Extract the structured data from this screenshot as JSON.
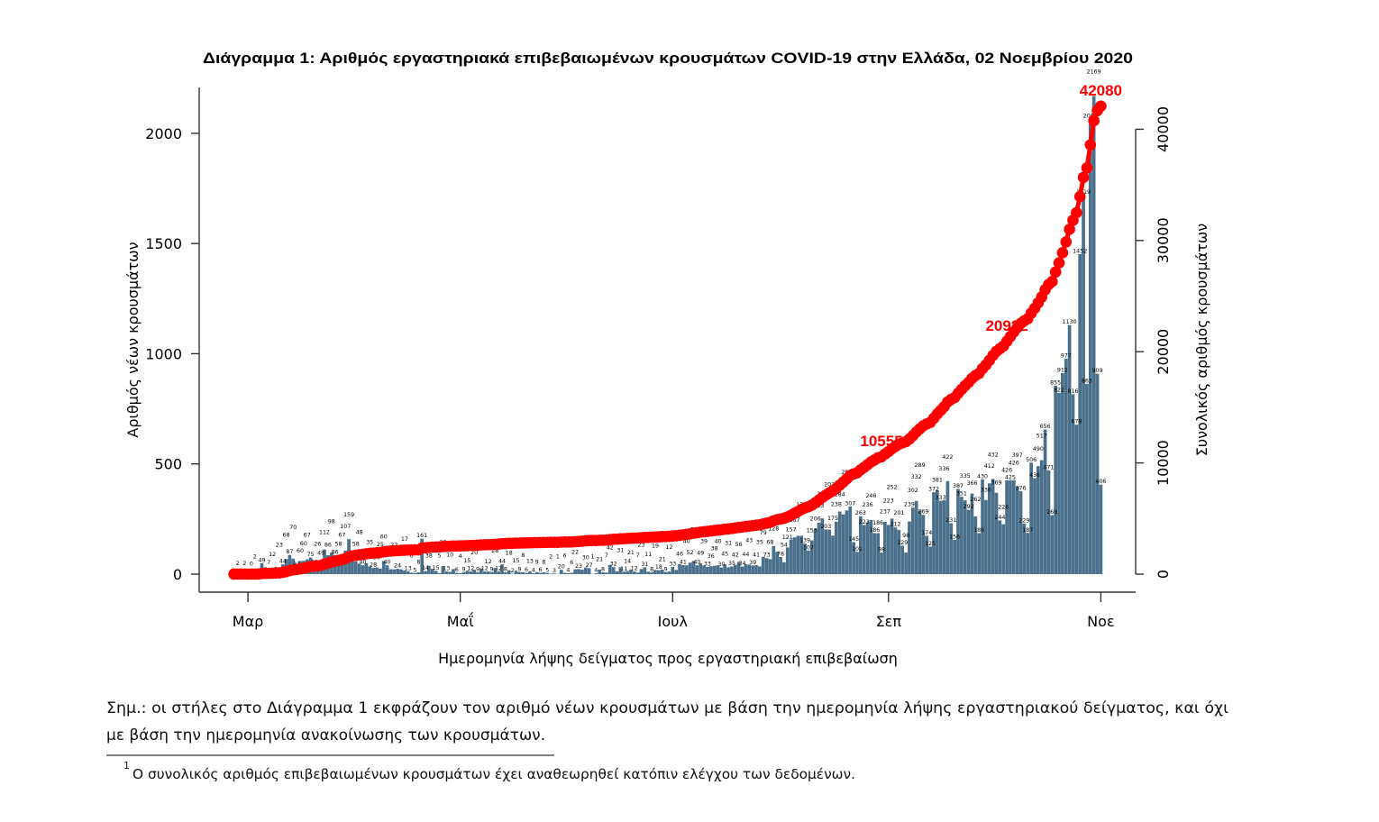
{
  "note": {
    "line1": "Σημ.: οι στήλες στο Διάγραμμα 1 εκφράζουν τον αριθμό νέων κρουσμάτων με βάση την ημερομηνία λήψης εργαστηριακού δείγματος, και όχι",
    "line2": "με βάση την ημερομηνία ανακοίνωσης των κρουσμάτων."
  },
  "footnote": {
    "marker": "1",
    "text": "Ο συνολικός αριθμός επιβεβαιωμένων κρουσμάτων έχει αναθεωρηθεί κατόπιν ελέγχου των δεδομένων."
  },
  "chart_data": {
    "type": "bar",
    "title": "Διάγραμμα 1: Αριθμός εργαστηριακά επιβεβαιωμένων κρουσμάτων COVID-19 στην Ελλάδα, 02 Νοεμβρίου 2020",
    "xlabel": "Ημερομηνία λήψης δείγματος προς εργαστηριακή επιβεβαίωση",
    "ylabel_left": "Αριθμός νέων κρουσμάτων",
    "ylabel_right": "Συνολικός αριθμός κρουσμάτων",
    "x_start_date": "2020-02-26",
    "xlim": [
      "2020-02-16",
      "2020-11-11"
    ],
    "x_ticks": [
      {
        "label": "Μαρ",
        "date": "2020-03-01"
      },
      {
        "label": "Μαΐ",
        "date": "2020-05-01"
      },
      {
        "label": "Ιουλ",
        "date": "2020-07-01"
      },
      {
        "label": "Σεπ",
        "date": "2020-09-01"
      },
      {
        "label": "Νοε",
        "date": "2020-11-01"
      }
    ],
    "ylim_left": [
      0,
      2200
    ],
    "yticks_left": [
      0,
      500,
      1000,
      1500,
      2000
    ],
    "ylim_right": [
      0,
      43600
    ],
    "yticks_right": [
      0,
      10000,
      20000,
      30000,
      40000
    ],
    "grid": false,
    "legend": "none",
    "series": [
      {
        "type": "bar",
        "axis": "left",
        "color": "#4A708B",
        "values": [
          2,
          2,
          0,
          2,
          0,
          0,
          2,
          2,
          49,
          7,
          7,
          12,
          9,
          23,
          44,
          68,
          87,
          70,
          31,
          60,
          60,
          67,
          75,
          40,
          26,
          49,
          112,
          86,
          98,
          86,
          58,
          67,
          107,
          159,
          68,
          58,
          48,
          40,
          50,
          35,
          28,
          30,
          25,
          60,
          40,
          22,
          22,
          24,
          22,
          17,
          13,
          6,
          5,
          8,
          161,
          14,
          38,
          24,
          15,
          5,
          36,
          13,
          10,
          23,
          6,
          4,
          9,
          15,
          12,
          20,
          9,
          26,
          12,
          12,
          9,
          28,
          12,
          44,
          8,
          18,
          2,
          15,
          9,
          8,
          6,
          13,
          4,
          9,
          6,
          8,
          5,
          2,
          3,
          1,
          20,
          6,
          4,
          6,
          22,
          23,
          20,
          30,
          27,
          1,
          4,
          21,
          8,
          7,
          42,
          32,
          13,
          31,
          11,
          14,
          21,
          12,
          7,
          23,
          31,
          11,
          8,
          19,
          18,
          21,
          9,
          12,
          33,
          19,
          46,
          41,
          40,
          52,
          60,
          40,
          49,
          39,
          33,
          36,
          38,
          40,
          30,
          45,
          31,
          35,
          42,
          56,
          34,
          44,
          43,
          39,
          41,
          35,
          79,
          73,
          68,
          128,
          101,
          78,
          54,
          121,
          157,
          167,
          174,
          174,
          139,
          107,
          153,
          206,
          233,
          253,
          203,
          202,
          175,
          238,
          284,
          271,
          289,
          307,
          145,
          101,
          263,
          223,
          236,
          246,
          186,
          186,
          98,
          237,
          223,
          252,
          212,
          201,
          129,
          98,
          239,
          302,
          332,
          289,
          269,
          174,
          125,
          372,
          381,
          333,
          336,
          422,
          231,
          156,
          387,
          351,
          335,
          292,
          366,
          262,
          186,
          430,
          336,
          412,
          432,
          369,
          244,
          226,
          426,
          425,
          426,
          397,
          376,
          229,
          187,
          506,
          436,
          490,
          517,
          656,
          471,
          268,
          855,
          822,
          912,
          977,
          1130,
          816,
          678,
          1452,
          1719,
          863,
          2066,
          2169,
          909,
          406
        ]
      },
      {
        "type": "line",
        "axis": "right",
        "color": "#FF0000",
        "computed_as": "running_sum",
        "annotations": [
          {
            "date": "2020-08-30",
            "value": 10555
          },
          {
            "date": "2020-10-05",
            "value": 20922
          },
          {
            "date": "2020-11-01",
            "value": 42080
          }
        ]
      }
    ]
  }
}
